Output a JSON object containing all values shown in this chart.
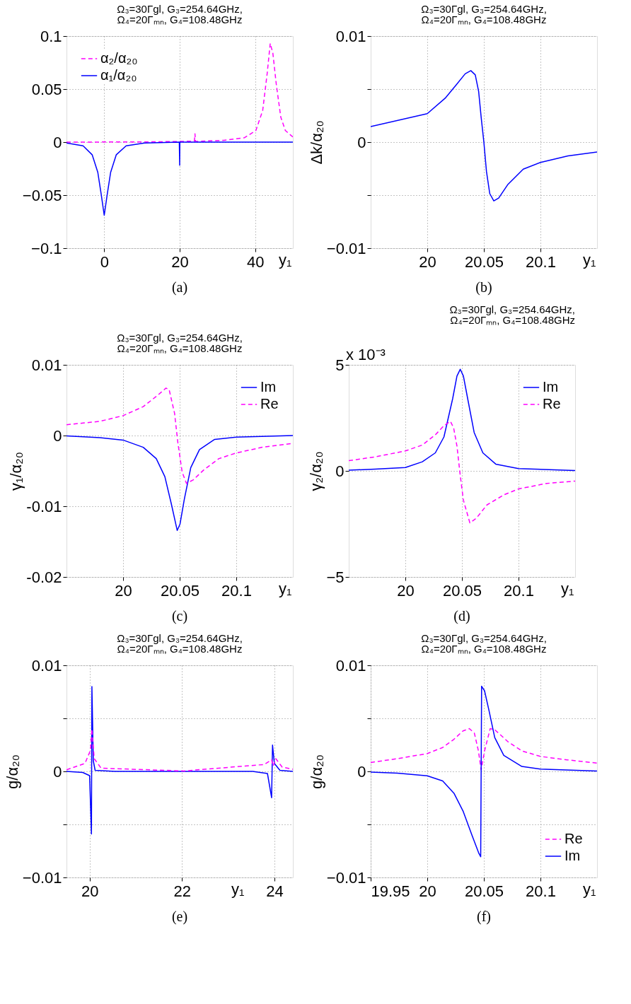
{
  "chart_data": [
    {
      "type": "line",
      "title": "Ω₃=30Γgl, G₃=254.64GHz,",
      "subtitle": "Ω₄=20Γₘₙ, G₄=108.48GHz",
      "xlabel": "y₁",
      "xlim": [
        -10,
        50
      ],
      "xticks": [
        0,
        20,
        40
      ],
      "ylim": [
        -0.1,
        0.1
      ],
      "yticks": [
        {
          "value": -0.1,
          "label": "−0.1"
        },
        {
          "value": -0.05,
          "label": "−0.05"
        },
        0,
        0.05,
        0.1
      ],
      "grid": true,
      "legend": "top left",
      "annotations": [
        "(a)"
      ],
      "series": [
        {
          "name": "α₂/α₂₀",
          "color": "#ff00ff",
          "line_style": "dashed",
          "x": [
            -10,
            10.7,
            20,
            23.9,
            24.05,
            24.2,
            31.7,
            37.2,
            40.2,
            42,
            43.2,
            44,
            44.7,
            45.6,
            46.8,
            48,
            50
          ],
          "values": [
            0,
            0.0002,
            0.0006,
            0.001,
            0.0079,
            0.0006,
            0.0017,
            0.0042,
            0.011,
            0.0297,
            0.065,
            0.0931,
            0.0838,
            0.0547,
            0.0235,
            0.011,
            0.0048
          ]
        },
        {
          "name": "α₁/α₂₀",
          "color": "#0000ff",
          "line_style": "solid",
          "x": [
            -10,
            -5.6,
            -3.2,
            -1.7,
            -0.8,
            0,
            0.8,
            1.7,
            3.2,
            5.8,
            10.7,
            19.9,
            20,
            20.05,
            50
          ],
          "values": [
            -0.0008,
            -0.0035,
            -0.0119,
            -0.0285,
            -0.0493,
            -0.069,
            -0.0493,
            -0.0285,
            -0.0119,
            -0.0035,
            -0.0008,
            0,
            -0.0218,
            0,
            0
          ]
        }
      ]
    },
    {
      "type": "line",
      "title": "Ω₃=30Γgl, G₃=254.64GHz,",
      "subtitle": "Ω₄=20Γₘₙ, G₄=108.48GHz",
      "xlabel": "y₁",
      "ylabel": "Δk/α₂₀",
      "xlim": [
        19.95,
        20.15
      ],
      "xticks": [
        20,
        20.05,
        20.1
      ],
      "ylim": [
        -0.01,
        0.01
      ],
      "yticks": [
        {
          "value": -0.01,
          "label": "−0.01"
        },
        {
          "value": -0.005,
          "label": null
        },
        0,
        {
          "value": 0.005,
          "label": null
        },
        0.01
      ],
      "grid": true,
      "annotations": [
        "(b)"
      ],
      "series": [
        {
          "color": "#0000ff",
          "line_style": "solid",
          "x": [
            19.95,
            20.0,
            20.0158,
            20.0256,
            20.0335,
            20.0385,
            20.0424,
            20.0454,
            20.0477,
            20.05,
            20.0523,
            20.0552,
            20.0588,
            20.0631,
            20.071,
            20.0848,
            20.1,
            20.1243,
            20.15
          ],
          "values": [
            0.00146,
            0.00268,
            0.00414,
            0.0054,
            0.00644,
            0.00674,
            0.00634,
            0.00477,
            0.00226,
            0,
            -0.00276,
            -0.00485,
            -0.00554,
            -0.00527,
            -0.00402,
            -0.00255,
            -0.00192,
            -0.0013,
            -0.00094
          ]
        }
      ]
    },
    {
      "type": "line",
      "title": "Ω₃=30Γgl, G₃=254.64GHz,",
      "subtitle": "Ω₄=20Γₘₙ, G₄=108.48GHz",
      "xlabel": "y₁",
      "ylabel": "γ₁/α₂₀",
      "xlim": [
        19.95,
        20.15
      ],
      "xticks": [
        20,
        20.05,
        20.1
      ],
      "ylim": [
        -0.02,
        0.01
      ],
      "yticks": [
        -0.02,
        -0.01,
        0,
        0.01
      ],
      "grid": true,
      "legend": "top right",
      "annotations": [
        "(c)"
      ],
      "series": [
        {
          "name": "Im",
          "color": "#0000ff",
          "line_style": "solid",
          "x": [
            19.95,
            19.9795,
            20.0,
            20.0178,
            20.0293,
            20.0369,
            20.0426,
            20.0478,
            20.0503,
            20.0541,
            20.0598,
            20.0675,
            20.0809,
            20.1,
            20.15
          ],
          "values": [
            -6e-05,
            -0.0003,
            -0.00064,
            -0.00166,
            -0.00326,
            -0.00581,
            -0.00965,
            -0.01342,
            -0.01252,
            -0.00901,
            -0.00454,
            -0.00198,
            -0.00054,
            -0.00022,
            0
          ]
        },
        {
          "name": "Re",
          "color": "#ff00ff",
          "line_style": "dashed",
          "x": [
            19.95,
            19.9795,
            20.0,
            20.0178,
            20.0293,
            20.0379,
            20.0407,
            20.0455,
            20.0484,
            20.0522,
            20.056,
            20.0618,
            20.0713,
            20.0847,
            20.1,
            20.123,
            20.15
          ],
          "values": [
            0.00153,
            0.00201,
            0.00281,
            0.00409,
            0.00553,
            0.00671,
            0.00649,
            0.00313,
            -0.00102,
            -0.00518,
            -0.00677,
            -0.00629,
            -0.00486,
            -0.00326,
            -0.00246,
            -0.00166,
            -0.00112
          ]
        }
      ]
    },
    {
      "type": "line",
      "title": "Ω₃=30Γgl, G₃=254.64GHz,",
      "subtitle": "Ω₄=20Γₘₙ, G₄=108.48GHz",
      "xlabel": "y₁",
      "ylabel": "γ₂/α₂₀",
      "xlim": [
        19.95,
        20.15
      ],
      "xticks": [
        20,
        20.05,
        20.1
      ],
      "ylim": [
        -5,
        5
      ],
      "yticks": [
        {
          "value": -5,
          "label": "−5"
        },
        0,
        5
      ],
      "grid": true,
      "legend": "top right",
      "annotations": [
        "(d)",
        "x 10⁻³"
      ],
      "series": [
        {
          "name": "Im",
          "color": "#0000ff",
          "line_style": "solid",
          "x": [
            19.95,
            19.9732,
            20.0,
            20.015,
            20.0265,
            20.0341,
            20.0418,
            20.0456,
            20.0485,
            20.0513,
            20.0551,
            20.0608,
            20.0685,
            20.0799,
            20.1,
            20.15
          ],
          "values": [
            0.03,
            0.085,
            0.16,
            0.43,
            0.85,
            1.6,
            3.4,
            4.47,
            4.79,
            4.47,
            3.4,
            1.81,
            0.85,
            0.32,
            0.11,
            0.02
          ]
        },
        {
          "name": "Re",
          "color": "#ff00ff",
          "line_style": "dashed",
          "x": [
            19.95,
            19.9732,
            20.0,
            20.015,
            20.0265,
            20.0341,
            20.0398,
            20.0427,
            20.0456,
            20.0485,
            20.0513,
            20.057,
            20.0627,
            20.0722,
            20.0874,
            20.1,
            20.125,
            20.15
          ],
          "values": [
            0.48,
            0.66,
            0.94,
            1.22,
            1.7,
            2.13,
            2.34,
            2.02,
            1.17,
            -0.21,
            -1.38,
            -2.45,
            -2.23,
            -1.6,
            -1.12,
            -0.85,
            -0.59,
            -0.48
          ]
        }
      ]
    },
    {
      "type": "line",
      "title": "Ω₃=30Γgl, G₃=254.64GHz,",
      "subtitle": "Ω₄=20Γₘₙ, G₄=108.48GHz",
      "xlabel": "y₁",
      "ylabel": "g/α₂₀",
      "xlim": [
        19.5,
        24.4
      ],
      "xticks": [
        20,
        22,
        24
      ],
      "ylim": [
        -0.01,
        0.01
      ],
      "yticks": [
        {
          "value": -0.01,
          "label": "−0.01"
        },
        {
          "value": -0.005,
          "label": null
        },
        0,
        {
          "value": 0.005,
          "label": null
        },
        0.01
      ],
      "grid": true,
      "annotations": [
        "(e)"
      ],
      "series": [
        {
          "color": "#0000ff",
          "line_style": "solid",
          "x": [
            19.5,
            19.85,
            20.0,
            20.04,
            20.05,
            20.08,
            20.12,
            20.55,
            23.53,
            23.85,
            23.94,
            23.96,
            24.0,
            24.12,
            24.4
          ],
          "values": [
            0,
            -0.0001,
            -0.0004,
            -0.0059,
            0.008,
            0.001,
            0.0001,
            0,
            0,
            -0.0002,
            -0.00248,
            0.00248,
            0.00075,
            0.0001,
            0
          ]
        },
        {
          "color": "#ff00ff",
          "line_style": "dashed",
          "x": [
            19.5,
            19.9,
            20.02,
            20.05,
            20.1,
            20.25,
            22.04,
            23.78,
            23.94,
            23.97,
            24.03,
            24.17,
            24.4
          ],
          "values": [
            0.00015,
            0.00075,
            0.002,
            0.004,
            0.0012,
            0.0003,
            4e-05,
            0.00065,
            0.0011,
            0.0005,
            0.0012,
            0.0004,
            0.0002
          ]
        }
      ]
    },
    {
      "type": "line",
      "title": "Ω₃=30Γgl, G₃=254.64GHz,",
      "subtitle": "Ω₄=20Γₘₙ, G₄=108.48GHz",
      "xlabel": "y₁",
      "ylabel": "g/α₂₀",
      "xlim": [
        19.95,
        20.15
      ],
      "xticks": [
        19.95,
        20,
        20.05,
        20.1
      ],
      "ylim": [
        -0.01,
        0.01
      ],
      "yticks": [
        {
          "value": -0.01,
          "label": "−0.01"
        },
        {
          "value": -0.005,
          "label": null
        },
        0,
        {
          "value": 0.005,
          "label": null
        },
        0.01
      ],
      "grid": true,
      "legend": "bottom right",
      "annotations": [
        "(f)"
      ],
      "series": [
        {
          "name": "Re",
          "color": "#ff00ff",
          "line_style": "dashed",
          "x": [
            19.95,
            19.9736,
            20.0,
            20.0136,
            20.0236,
            20.0316,
            20.0372,
            20.0416,
            20.0452,
            20.0476,
            20.0506,
            20.0556,
            20.0596,
            20.0716,
            20.0836,
            20.1,
            20.1236,
            20.15
          ],
          "values": [
            0.00084,
            0.0012,
            0.00168,
            0.00225,
            0.00303,
            0.00382,
            0.00403,
            0.00361,
            0.00193,
            0.00015,
            0.00193,
            0.00403,
            0.00393,
            0.00277,
            0.00193,
            0.00141,
            0.00109,
            0.00078
          ]
        },
        {
          "name": "Im",
          "color": "#0000ff",
          "line_style": "solid",
          "x": [
            19.95,
            19.9736,
            20.0,
            20.0136,
            20.0236,
            20.0316,
            20.0396,
            20.0456,
            20.0472,
            20.048,
            20.0506,
            20.0546,
            20.0596,
            20.0676,
            20.0836,
            20.1,
            20.15
          ],
          "values": [
            -6e-05,
            -0.00017,
            -0.00042,
            -0.0009,
            -0.00206,
            -0.00374,
            -0.00605,
            -0.00773,
            -0.00805,
            0.00803,
            0.0076,
            0.00571,
            0.00319,
            0.00151,
            0.00046,
            0.00021,
            4e-05
          ]
        }
      ]
    }
  ]
}
